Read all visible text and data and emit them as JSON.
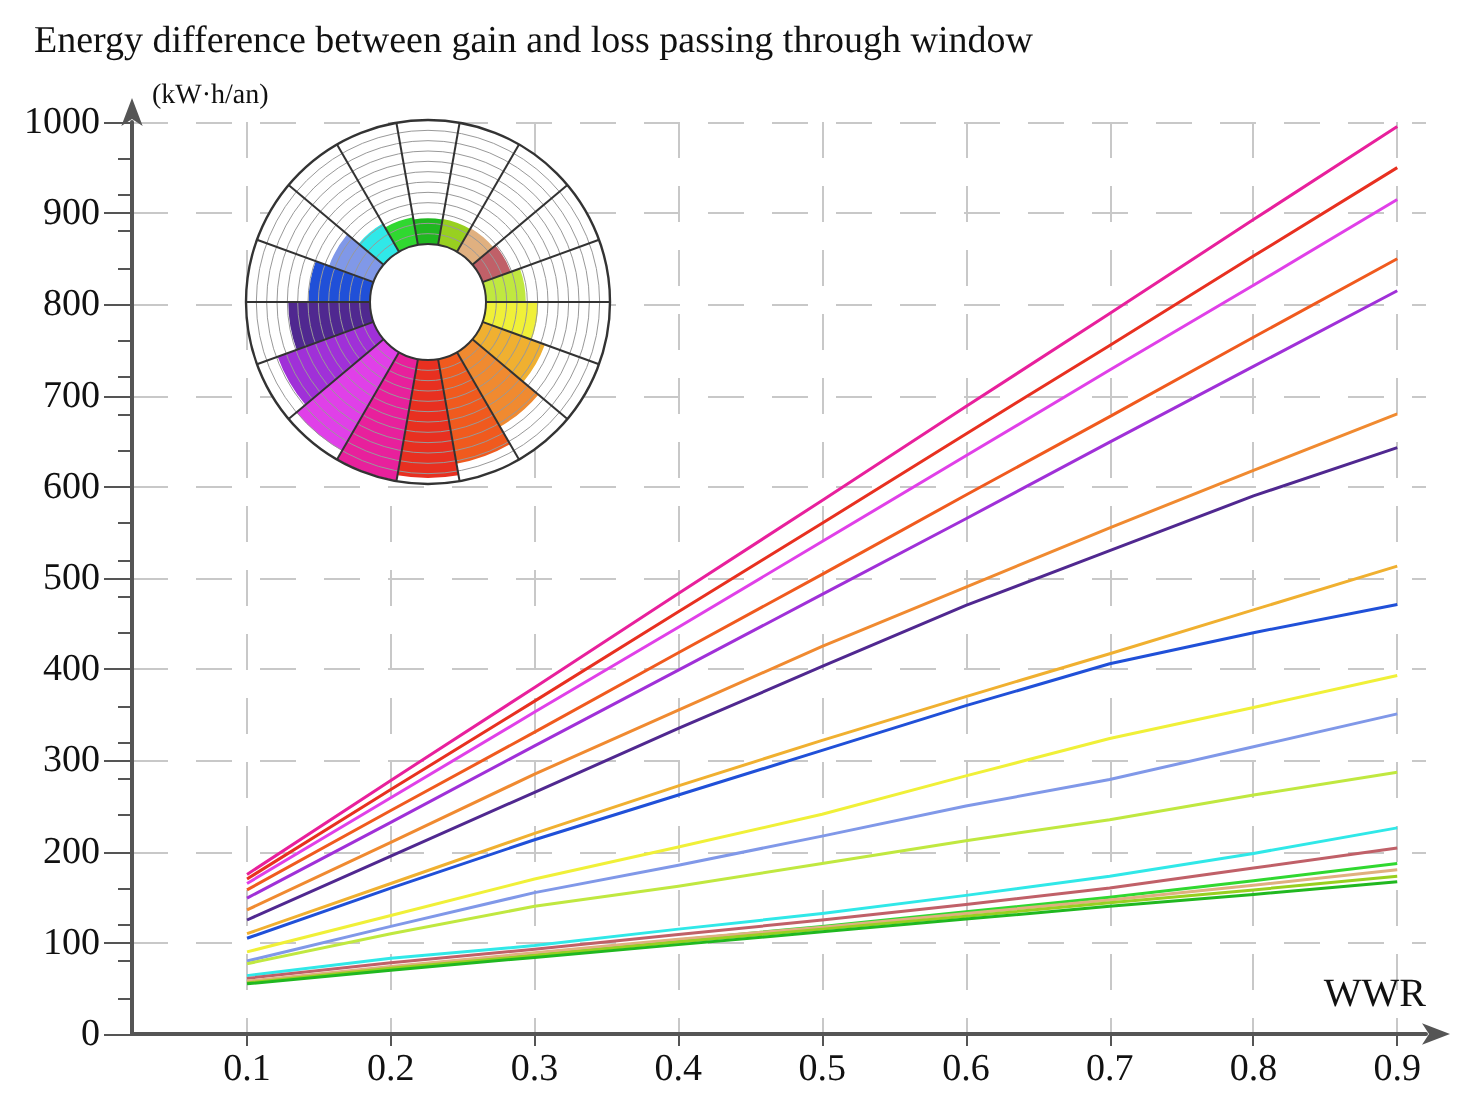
{
  "chart_data": {
    "type": "line",
    "title": "Energy difference between gain and loss passing through window",
    "ylabel": "(kW·h/an)",
    "xlabel": "WWR",
    "x": [
      0.1,
      0.2,
      0.3,
      0.4,
      0.5,
      0.6,
      0.7,
      0.8,
      0.9
    ],
    "xlim": [
      0.02,
      0.92
    ],
    "xticks": [
      0.1,
      0.2,
      0.3,
      0.4,
      0.5,
      0.6,
      0.7,
      0.8,
      0.9
    ],
    "ylim": [
      0,
      1000
    ],
    "yticks": [
      0,
      100,
      200,
      300,
      400,
      500,
      600,
      700,
      800,
      900,
      1000
    ],
    "grid": true,
    "marker": "none",
    "line_style": "solid",
    "series": [
      {
        "color": "#e8209c",
        "values": [
          175,
          278,
          380,
          483,
          585,
          688,
          790,
          893,
          995
        ]
      },
      {
        "color": "#e83020",
        "values": [
          170,
          268,
          365,
          463,
          560,
          658,
          755,
          853,
          950
        ]
      },
      {
        "color": "#e040e8",
        "values": [
          165,
          259,
          353,
          446,
          540,
          634,
          728,
          821,
          915
        ]
      },
      {
        "color": "#f05a1e",
        "values": [
          158,
          245,
          331,
          418,
          504,
          591,
          677,
          764,
          850
        ]
      },
      {
        "color": "#a030d8",
        "values": [
          149,
          232,
          316,
          399,
          482,
          565,
          649,
          732,
          815
        ]
      },
      {
        "color": "#f08a30",
        "values": [
          136,
          210,
          285,
          355,
          425,
          490,
          555,
          618,
          680
        ]
      },
      {
        "color": "#502890",
        "values": [
          125,
          195,
          265,
          335,
          403,
          470,
          530,
          590,
          643
        ]
      },
      {
        "color": "#f0b030",
        "values": [
          110,
          165,
          220,
          272,
          322,
          370,
          417,
          465,
          513
        ]
      },
      {
        "color": "#2050d8",
        "values": [
          105,
          160,
          213,
          262,
          311,
          360,
          406,
          440,
          471
        ]
      },
      {
        "color": "#f0f038",
        "values": [
          90,
          130,
          170,
          205,
          241,
          283,
          324,
          358,
          393
        ]
      },
      {
        "color": "#8098e8",
        "values": [
          80,
          118,
          155,
          185,
          217,
          250,
          279,
          315,
          351
        ]
      },
      {
        "color": "#c0e840",
        "values": [
          77,
          110,
          140,
          162,
          187,
          212,
          235,
          262,
          287
        ]
      },
      {
        "color": "#30e8e8",
        "values": [
          64,
          83,
          97,
          115,
          132,
          152,
          173,
          198,
          226
        ]
      },
      {
        "color": "#c06068",
        "values": [
          61,
          78,
          93,
          109,
          125,
          142,
          160,
          182,
          204
        ]
      },
      {
        "color": "#30d830",
        "values": [
          57,
          73,
          88,
          103,
          118,
          134,
          150,
          168,
          187
        ]
      },
      {
        "color": "#e0b080",
        "values": [
          58,
          74,
          89,
          104,
          117,
          132,
          147,
          163,
          180
        ]
      },
      {
        "color": "#98d020",
        "values": [
          56,
          72,
          86,
          101,
          115,
          129,
          144,
          158,
          173
        ]
      },
      {
        "color": "#20b820",
        "values": [
          55,
          70,
          84,
          98,
          112,
          126,
          140,
          153,
          167
        ]
      }
    ]
  }
}
